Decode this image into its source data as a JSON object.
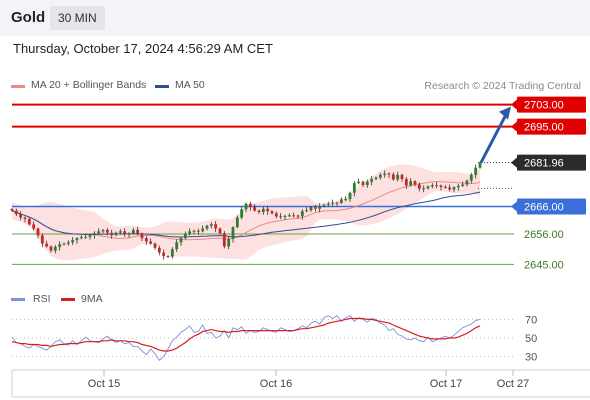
{
  "header": {
    "title": "Gold",
    "timeframe": "30 MIN"
  },
  "timestamp": "Thursday, October 17, 2024 4:56:29 AM CET",
  "legend": {
    "ma20_label": "MA 20 + Bollinger Bands",
    "ma50_label": "MA 50",
    "credit": "Research © 2024 Trading Central"
  },
  "rsi_legend": {
    "rsi_label": "RSI",
    "ma_label": "9MA"
  },
  "colors": {
    "resistance": "#e00000",
    "support": "#6a9f4b",
    "pivot": "#3a6fd8",
    "ma20": "#e88a8a",
    "ma50": "#2f4f8f",
    "band_fill": "#fde0e0",
    "up": "#2e7d32",
    "down": "#c62828",
    "rsi": "#7b90e0",
    "rsi_ma": "#d42020",
    "arrow": "#2a5aa8"
  },
  "chart_data": [
    {
      "type": "candlestick",
      "title": "Gold",
      "xlabel": "",
      "ylabel": "",
      "ylim": [
        2637.5,
        2706.5
      ],
      "x_ticks": [
        "Oct 15",
        "Oct 16",
        "Oct 17",
        "Oct 27"
      ],
      "series": [
        {
          "name": "MA 20 + Bollinger Bands",
          "role": "ma20"
        },
        {
          "name": "MA 50",
          "role": "ma50"
        }
      ],
      "closes": [
        2664.5,
        2663.2,
        2662,
        2661.5,
        2659.5,
        2658,
        2655.5,
        2652.5,
        2651.5,
        2650,
        2651.3,
        2652.3,
        2652.5,
        2653,
        2653.8,
        2654.5,
        2654.9,
        2655,
        2655.6,
        2656.3,
        2657,
        2657.5,
        2656.5,
        2655.6,
        2656.5,
        2657,
        2656,
        2656.3,
        2657.5,
        2656.2,
        2654.5,
        2653.3,
        2652.5,
        2651,
        2649.3,
        2648,
        2647.8,
        2650.5,
        2653,
        2654.5,
        2656.2,
        2657,
        2657.2,
        2657,
        2658,
        2659,
        2659.6,
        2658,
        2656.3,
        2651.5,
        2654.2,
        2658.5,
        2662,
        2665,
        2667,
        2665.8,
        2664.5,
        2664,
        2665.2,
        2664.3,
        2663.5,
        2662.4,
        2662.5,
        2662.6,
        2662.8,
        2662.7,
        2662.5,
        2664.3,
        2664.7,
        2665.8,
        2665.2,
        2666.1,
        2666.6,
        2667,
        2667.4,
        2667.3,
        2668.6,
        2668.7,
        2671,
        2674.5,
        2675,
        2673.8,
        2675,
        2676,
        2676.5,
        2677.5,
        2678,
        2677.7,
        2675.8,
        2677.5,
        2676,
        2673.7,
        2675.2,
        2674,
        2672.5,
        2672.6,
        2673.3,
        2673.8,
        2673.6,
        2673.1,
        2672.9,
        2672.2,
        2673,
        2673.5,
        2674,
        2675.4,
        2677.5,
        2680.1,
        2681.96
      ],
      "levels": [
        {
          "label": "2703.00",
          "value": 2703.0,
          "kind": "resistance"
        },
        {
          "label": "2695.00",
          "value": 2695.0,
          "kind": "resistance"
        },
        {
          "label": "2681.96",
          "value": 2681.96,
          "kind": "last"
        },
        {
          "label": "2666.00",
          "value": 2666.0,
          "kind": "pivot"
        },
        {
          "label": "2656.00",
          "value": 2656.0,
          "kind": "support"
        },
        {
          "label": "2645.00",
          "value": 2645.0,
          "kind": "support"
        }
      ],
      "target_arrow": {
        "from": 2681.96,
        "to": 2703.0
      }
    },
    {
      "type": "line",
      "title": "RSI",
      "ylim": [
        22,
        78
      ],
      "ticks": [
        "70",
        "50",
        "30"
      ],
      "tick_values": [
        70,
        50,
        30
      ],
      "series": [
        {
          "name": "RSI",
          "role": "rsi",
          "values": [
            51,
            45,
            44,
            41,
            39,
            43,
            41,
            39,
            37,
            41,
            46,
            48,
            44,
            42,
            47,
            43,
            47,
            51,
            47,
            46,
            45,
            49,
            52,
            48,
            45,
            47,
            44,
            45,
            41,
            41,
            36,
            32,
            38,
            33,
            26,
            30,
            38,
            47,
            51,
            56,
            59,
            63,
            56,
            57,
            64,
            55,
            56,
            50,
            52,
            58,
            50,
            61,
            59,
            62,
            55,
            58,
            56,
            57,
            61,
            59,
            57,
            56,
            61,
            59,
            57,
            58,
            60,
            63,
            61,
            66,
            68,
            65,
            72,
            74,
            71,
            74,
            68,
            72,
            74,
            68,
            72,
            70,
            67,
            71,
            70,
            66,
            64,
            58,
            60,
            54,
            52,
            49,
            48,
            50,
            47,
            46,
            51,
            46,
            48,
            50,
            52,
            50,
            53,
            57,
            61,
            63,
            65,
            69,
            70
          ]
        },
        {
          "name": "9MA",
          "role": "ma",
          "values": [
            46,
            45,
            44,
            44,
            43,
            43,
            43,
            42,
            42,
            41,
            42,
            43,
            43,
            44,
            44,
            44,
            45,
            46,
            46,
            46,
            46,
            47,
            47,
            48,
            47,
            47,
            47,
            46,
            46,
            45,
            43,
            42,
            41,
            39,
            37,
            36,
            36,
            37,
            39,
            42,
            45,
            49,
            52,
            54,
            57,
            58,
            59,
            58,
            57,
            57,
            56,
            57,
            57,
            58,
            58,
            58,
            58,
            58,
            58,
            58,
            58,
            58,
            58,
            58,
            58,
            58,
            59,
            60,
            60,
            61,
            62,
            63,
            64,
            66,
            67,
            68,
            69,
            70,
            71,
            71,
            71,
            71,
            70,
            70,
            69,
            68,
            67,
            66,
            64,
            62,
            60,
            58,
            56,
            54,
            52,
            51,
            50,
            49,
            49,
            49,
            49,
            50,
            50,
            51,
            53,
            55,
            58,
            61,
            63
          ]
        }
      ]
    }
  ]
}
